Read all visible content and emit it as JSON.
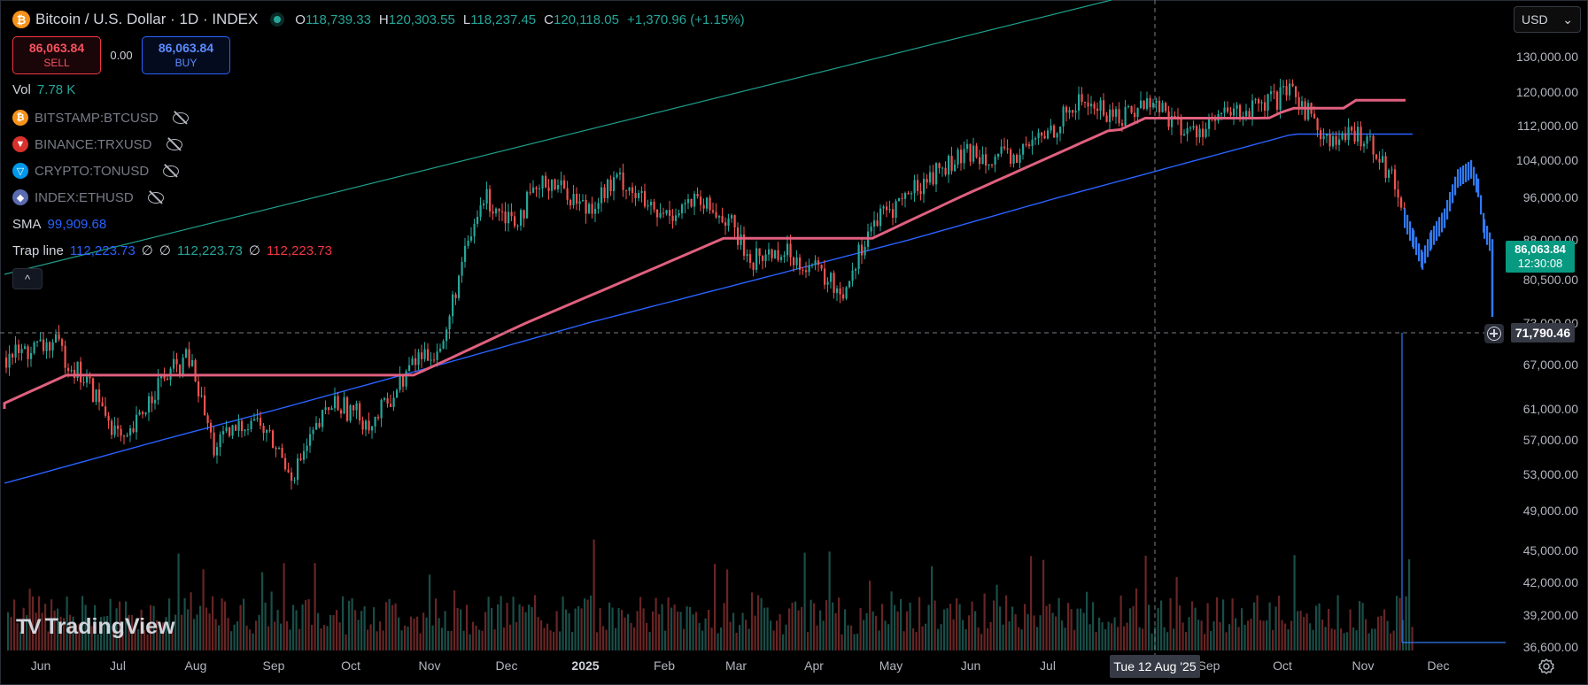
{
  "header": {
    "symbol_icon": "bitcoin-icon",
    "symbol_icon_glyph": "₿",
    "title": "Bitcoin / U.S. Dollar · 1D · INDEX",
    "market_status": "market-open",
    "ohlc": {
      "open_key": "O",
      "open": "118,739.33",
      "high_key": "H",
      "high": "120,303.55",
      "low_key": "L",
      "low": "118,237.45",
      "close_key": "C",
      "close": "120,118.05",
      "change": "+1,370.96 (+1.15%)"
    }
  },
  "trade": {
    "sell_price": "86,063.84",
    "sell_label": "SELL",
    "spread": "0.00",
    "buy_price": "86,063.84",
    "buy_label": "BUY"
  },
  "legend": {
    "vol_label": "Vol",
    "vol_value": "7.78 K",
    "symbols": [
      {
        "name": "BITSTAMP:BTCUSD",
        "icon": "bitcoin-icon",
        "glyph": "₿",
        "color": "#f7931a"
      },
      {
        "name": "BINANCE:TRXUSD",
        "icon": "tron-icon",
        "glyph": "▼",
        "color": "#d9312c"
      },
      {
        "name": "CRYPTO:TONUSD",
        "icon": "toncoin-icon",
        "glyph": "▽",
        "color": "#0098ea"
      },
      {
        "name": "INDEX:ETHUSD",
        "icon": "ethereum-icon",
        "glyph": "◆",
        "color": "#5a6bb0"
      }
    ],
    "sma_label": "SMA",
    "sma_value": "99,909.68",
    "trap_label": "Trap line",
    "trap_v1": "112,223.73",
    "trap_na1": "∅",
    "trap_na2": "∅",
    "trap_v2": "112,223.73",
    "trap_na3": "∅",
    "trap_v3": "112,223.73",
    "collapse_glyph": "^"
  },
  "price_axis": {
    "currency": "USD",
    "ticks": [
      "130,000.00",
      "120,000.00",
      "112,000.00",
      "104,000.00",
      "96,000.00",
      "88,000.00",
      "80,500.00",
      "73,000.00",
      "67,000.00",
      "61,000.00",
      "57,000.00",
      "53,000.00",
      "49,000.00",
      "45,000.00",
      "42,000.00",
      "39,200.00",
      "36,600.00"
    ],
    "last_price": "86,063.84",
    "countdown": "12:30:08",
    "crosshair_price": "71,790.46"
  },
  "time_axis": {
    "ticks": [
      {
        "label": "Jun",
        "bold": false
      },
      {
        "label": "Jul",
        "bold": false
      },
      {
        "label": "Aug",
        "bold": false
      },
      {
        "label": "Sep",
        "bold": false
      },
      {
        "label": "Oct",
        "bold": false
      },
      {
        "label": "Nov",
        "bold": false
      },
      {
        "label": "Dec",
        "bold": false
      },
      {
        "label": "2025",
        "bold": true
      },
      {
        "label": "Feb",
        "bold": false
      },
      {
        "label": "Mar",
        "bold": false
      },
      {
        "label": "Apr",
        "bold": false
      },
      {
        "label": "May",
        "bold": false
      },
      {
        "label": "Jun",
        "bold": false
      },
      {
        "label": "Jul",
        "bold": false
      },
      {
        "label": "Sep",
        "bold": false
      },
      {
        "label": "Oct",
        "bold": false
      },
      {
        "label": "Nov",
        "bold": false
      },
      {
        "label": "Dec",
        "bold": false
      }
    ],
    "crosshair_date": "Tue 12 Aug '25"
  },
  "watermark": {
    "logo_glyph": "TV",
    "brand": "TradingView"
  },
  "colors": {
    "up": "#26a69a",
    "down": "#ef5350",
    "sma": "#2962ff",
    "trap": "#e0607e",
    "trend": "#1e9e8a",
    "recent": "#3179f5"
  }
}
